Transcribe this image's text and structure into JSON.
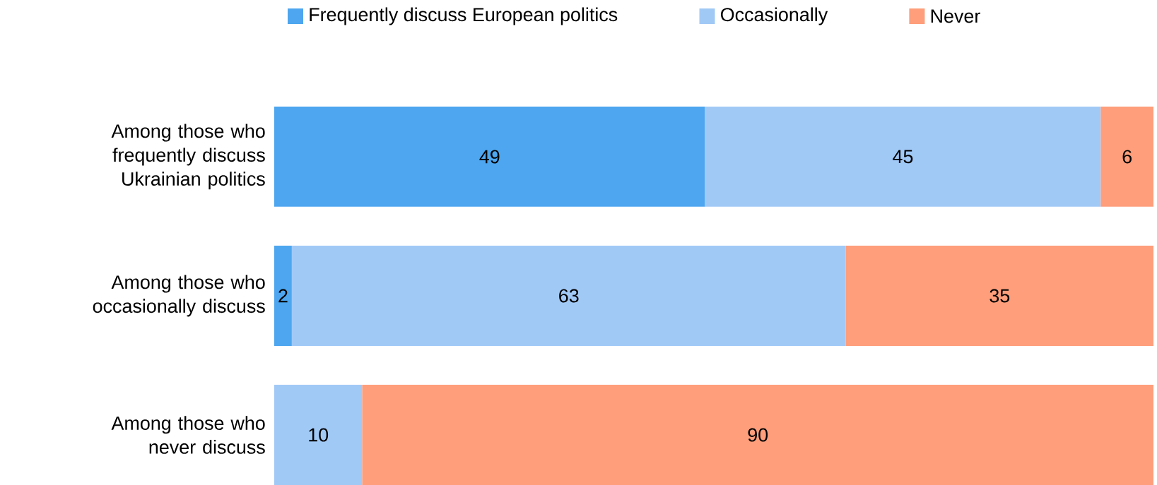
{
  "chart_data": {
    "type": "bar",
    "orientation": "horizontal",
    "stacked": true,
    "data_labels": true,
    "legend": "top",
    "categories": [
      "Among those who frequently discuss Ukrainian politics",
      "Among those who occasionally discuss",
      "Among those who never discuss"
    ],
    "series": [
      {
        "name": "Frequently discuss European politics",
        "color": "#4da6ef",
        "values": [
          49,
          2,
          null
        ]
      },
      {
        "name": "Occasionally",
        "color": "#a1c9f6",
        "values": [
          45,
          63,
          10
        ]
      },
      {
        "name": "Never",
        "color": "#fe9e7b",
        "values": [
          6,
          35,
          90
        ]
      }
    ]
  }
}
